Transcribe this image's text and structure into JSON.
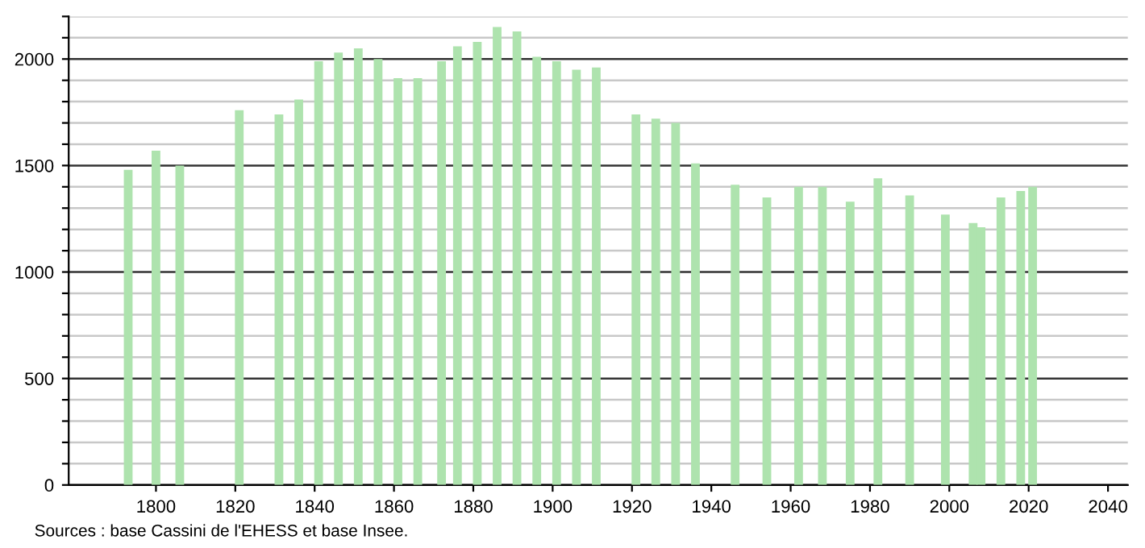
{
  "chart_data": {
    "type": "bar",
    "x": [
      1793,
      1800,
      1806,
      1821,
      1831,
      1836,
      1841,
      1846,
      1851,
      1856,
      1861,
      1866,
      1872,
      1876,
      1881,
      1886,
      1891,
      1896,
      1901,
      1906,
      1911,
      1921,
      1926,
      1931,
      1936,
      1946,
      1954,
      1962,
      1968,
      1975,
      1982,
      1990,
      1999,
      2006,
      2008,
      2013,
      2018,
      2021
    ],
    "values": [
      1480,
      1570,
      1500,
      1760,
      1740,
      1810,
      1990,
      2030,
      2050,
      2000,
      1910,
      1910,
      1990,
      2060,
      2080,
      2150,
      2130,
      2010,
      1990,
      1950,
      1960,
      1740,
      1720,
      1700,
      1510,
      1410,
      1350,
      1400,
      1400,
      1330,
      1440,
      1360,
      1270,
      1230,
      1210,
      1350,
      1380,
      1400
    ],
    "color": "#aee3ae",
    "xlim": [
      1778,
      2045
    ],
    "xticks": [
      1800,
      1820,
      1840,
      1860,
      1880,
      1900,
      1920,
      1940,
      1960,
      1980,
      2000,
      2020,
      2040
    ],
    "ylim": [
      0,
      2200
    ],
    "yticks": [
      0,
      {
        "value": 100,
        "label": null
      },
      {
        "value": 200,
        "label": null
      },
      {
        "value": 300,
        "label": null
      },
      {
        "value": 400,
        "label": null
      },
      500,
      {
        "value": 600,
        "label": null
      },
      {
        "value": 700,
        "label": null
      },
      {
        "value": 800,
        "label": null
      },
      {
        "value": 900,
        "label": null
      },
      1000,
      {
        "value": 1100,
        "label": null
      },
      {
        "value": 1200,
        "label": null
      },
      {
        "value": 1300,
        "label": null
      },
      {
        "value": 1400,
        "label": null
      },
      1500,
      {
        "value": 1600,
        "label": null
      },
      {
        "value": 1700,
        "label": null
      },
      {
        "value": 1800,
        "label": null
      },
      {
        "value": 1900,
        "label": null
      },
      2000,
      {
        "value": 2100,
        "label": null
      },
      {
        "value": 2200,
        "label": null
      }
    ],
    "grid": "y",
    "annotations": [
      "Sources : base Cassini de l'EHESS et base Insee."
    ]
  }
}
